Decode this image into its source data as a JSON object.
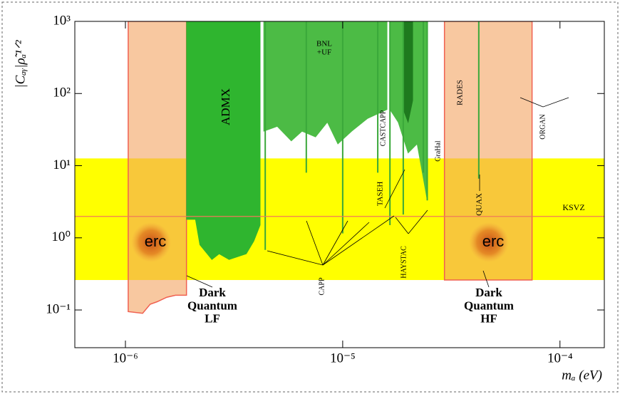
{
  "chart_data": {
    "type": "area",
    "xlabel": "mₐ (eV)",
    "ylabel": "|Cₐᵧ|ρ̃ₐ¹ᐟ²",
    "xscale": "log",
    "yscale": "log",
    "xlim": [
      5.85e-07,
      0.00016
    ],
    "ylim": [
      0.03,
      1000
    ],
    "xticks": [
      {
        "value": 1e-06,
        "label": "10⁻⁶"
      },
      {
        "value": 1e-05,
        "label": "10⁻⁵"
      },
      {
        "value": 0.0001,
        "label": "10⁻⁴"
      }
    ],
    "yticks": [
      {
        "value": 0.1,
        "label": "10⁻¹"
      },
      {
        "value": 1,
        "label": "10⁰"
      },
      {
        "value": 10,
        "label": "10¹"
      },
      {
        "value": 100,
        "label": "10²"
      },
      {
        "value": 1000,
        "label": "10³"
      }
    ],
    "band": {
      "range": [
        0.26,
        12.6
      ],
      "color": "#ffff00"
    },
    "ksvz": {
      "value": 1.98,
      "color": "#f07a5a"
    },
    "series": [
      {
        "color": "#f4a460",
        "x": [
          1.03e-06,
          1.2e-06,
          1.3e-06,
          1.4e-06,
          1.55e-06,
          1.7e-06,
          1.91e-06
        ],
        "y": [
          0.095,
          0.09,
          0.12,
          0.13,
          0.15,
          0.16,
          0.16
        ]
      },
      {
        "color": "#f4a460",
        "x": [
          2.94e-05,
          7.44e-05
        ],
        "y": [
          0.26,
          0.26
        ]
      },
      {
        "color": "#2fb52f",
        "x": [
          1.91e-06,
          2.1e-06,
          2.2e-06,
          2.5e-06,
          2.7e-06,
          3e-06,
          3.3e-06,
          3.6e-06,
          3.9e-06,
          4.17e-06
        ],
        "y": [
          1.8,
          1.8,
          0.8,
          0.5,
          0.6,
          0.5,
          0.55,
          0.6,
          0.9,
          1.5
        ]
      },
      {
        "color": "#4cbb45",
        "x": [
          4.33e-06,
          5e-06,
          5.8e-06,
          6.5e-06,
          7.5e-06,
          8.5e-06,
          9.5e-06,
          1.1e-05,
          1.3e-05,
          1.6e-05
        ],
        "y": [
          30,
          35,
          22,
          30,
          25,
          40,
          20,
          30,
          45,
          60
        ]
      },
      {
        "color": "#4cbb45",
        "x": [
          1.65e-05,
          1.8e-05,
          2e-05,
          2.2e-05,
          2.45e-05
        ],
        "y": [
          60,
          40,
          15,
          20,
          3.3
        ]
      },
      {
        "color": "#1e7a1e",
        "x": [
          1.9e-05,
          2e-05,
          2.1e-05
        ],
        "y": [
          60,
          40,
          80
        ]
      }
    ],
    "spikes": {
      "color": "#3aa83a",
      "x": [
        4.4e-06,
        6.8e-06,
        1e-05,
        1.45e-05,
        1.65e-05,
        1.9e-05,
        2.35e-05,
        2.45e-05,
        4.23e-05
      ],
      "y": [
        0.68,
        8,
        1.15,
        8,
        1.5,
        2.1,
        8,
        3.3,
        6.6
      ]
    },
    "annotations": [
      "ADMX",
      [
        "BNL",
        "+UF"
      ],
      "CASTCAPP",
      "GraHal",
      "RADES",
      "ORGAN",
      "TASEH",
      "QUAX",
      "HAYSTAC",
      "CAPP",
      "KSVZ",
      [
        "Dark",
        "Quantum",
        "LF"
      ],
      [
        "Dark",
        "Quantum",
        "HF"
      ]
    ],
    "logo_text": "erc"
  }
}
